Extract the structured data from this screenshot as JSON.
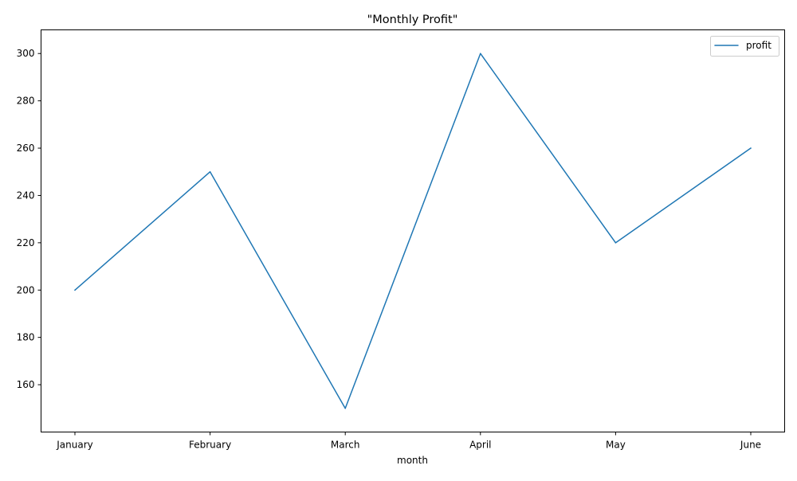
{
  "chart_data": {
    "type": "line",
    "title": "\"Monthly Profit\"",
    "xlabel": "month",
    "ylabel": "",
    "categories": [
      "January",
      "February",
      "March",
      "April",
      "May",
      "June"
    ],
    "series": [
      {
        "name": "profit",
        "values": [
          200,
          250,
          150,
          300,
          220,
          260
        ],
        "color": "#1f77b4"
      }
    ],
    "ylim": [
      140,
      310
    ],
    "yticks": [
      160,
      180,
      200,
      220,
      240,
      260,
      280,
      300
    ],
    "grid": false,
    "legend_position": "top-right"
  }
}
